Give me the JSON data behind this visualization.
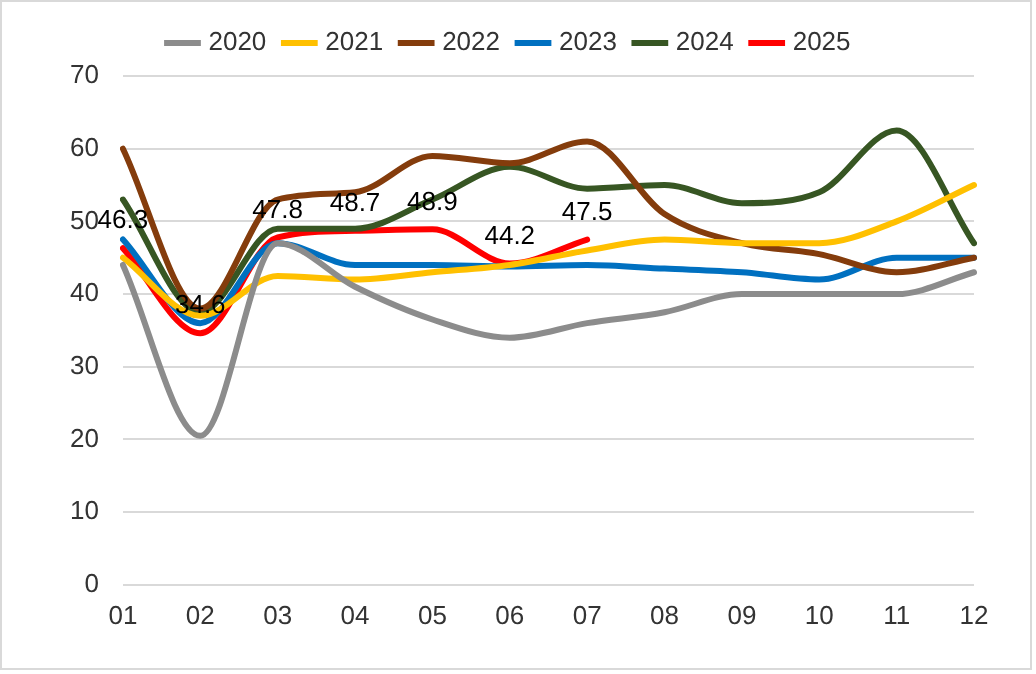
{
  "chart_data": {
    "type": "line",
    "categories": [
      "01",
      "02",
      "03",
      "04",
      "05",
      "06",
      "07",
      "08",
      "09",
      "10",
      "11",
      "12"
    ],
    "series": [
      {
        "name": "2020",
        "color": "#8c8c8c",
        "values": [
          44,
          20.5,
          47,
          41,
          36.5,
          34,
          36,
          37.5,
          40,
          40,
          40,
          43
        ]
      },
      {
        "name": "2021",
        "color": "#ffc000",
        "values": [
          45,
          37,
          42.5,
          42,
          43,
          44,
          46,
          47.5,
          47,
          47,
          50,
          55
        ]
      },
      {
        "name": "2022",
        "color": "#843c0c",
        "values": [
          60,
          38,
          53,
          54,
          59,
          58,
          61,
          51,
          47,
          45.5,
          43,
          45
        ]
      },
      {
        "name": "2023",
        "color": "#0070c0",
        "values": [
          47.5,
          36,
          47,
          44,
          44,
          43.8,
          44,
          43.5,
          43,
          42,
          45,
          45
        ]
      },
      {
        "name": "2024",
        "color": "#375623",
        "values": [
          53,
          37.5,
          49,
          49,
          53,
          57.5,
          54.5,
          55,
          52.5,
          54,
          62.5,
          47
        ]
      },
      {
        "name": "2025",
        "color": "#ff0000",
        "values": [
          46.3,
          34.6,
          47.8,
          48.7,
          48.9,
          44.2,
          47.5,
          null,
          null,
          null,
          null,
          null
        ],
        "data_labels": true
      }
    ],
    "ylim": [
      0,
      70
    ],
    "yticks": [
      0,
      10,
      20,
      30,
      40,
      50,
      60,
      70
    ],
    "grid": "y",
    "legend": "top",
    "marker": "none",
    "line_style": "solid"
  }
}
